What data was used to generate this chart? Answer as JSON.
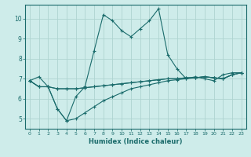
{
  "xlabel": "Humidex (Indice chaleur)",
  "bg_color": "#ceecea",
  "grid_color": "#aed4d0",
  "line_color": "#1a6b6b",
  "xlim": [
    -0.5,
    23.5
  ],
  "ylim": [
    4.5,
    10.7
  ],
  "xticks": [
    0,
    1,
    2,
    3,
    4,
    5,
    6,
    7,
    8,
    9,
    10,
    11,
    12,
    13,
    14,
    15,
    16,
    17,
    18,
    19,
    20,
    21,
    22,
    23
  ],
  "yticks": [
    5,
    6,
    7,
    8,
    9,
    10
  ],
  "lines": [
    [
      6.9,
      7.1,
      6.6,
      5.5,
      4.9,
      6.1,
      6.6,
      8.4,
      10.2,
      9.9,
      9.4,
      9.1,
      9.5,
      9.9,
      10.5,
      8.2,
      7.5,
      7.0,
      7.1,
      7.0,
      6.9,
      7.2,
      7.3,
      7.3
    ],
    [
      6.9,
      6.6,
      6.6,
      6.5,
      6.5,
      6.5,
      6.55,
      6.6,
      6.65,
      6.7,
      6.75,
      6.8,
      6.85,
      6.9,
      6.95,
      7.0,
      7.0,
      7.05,
      7.05,
      7.1,
      7.05,
      7.0,
      7.2,
      7.3
    ],
    [
      6.9,
      6.6,
      6.6,
      5.5,
      4.9,
      5.0,
      5.3,
      5.6,
      5.9,
      6.1,
      6.3,
      6.5,
      6.6,
      6.7,
      6.8,
      6.9,
      6.95,
      7.0,
      7.05,
      7.1,
      7.05,
      7.0,
      7.2,
      7.3
    ],
    [
      6.9,
      6.6,
      6.6,
      6.5,
      6.5,
      6.5,
      6.55,
      6.6,
      6.65,
      6.7,
      6.75,
      6.8,
      6.85,
      6.9,
      6.95,
      7.0,
      7.0,
      7.05,
      7.05,
      7.1,
      7.05,
      7.0,
      7.2,
      7.3
    ]
  ]
}
